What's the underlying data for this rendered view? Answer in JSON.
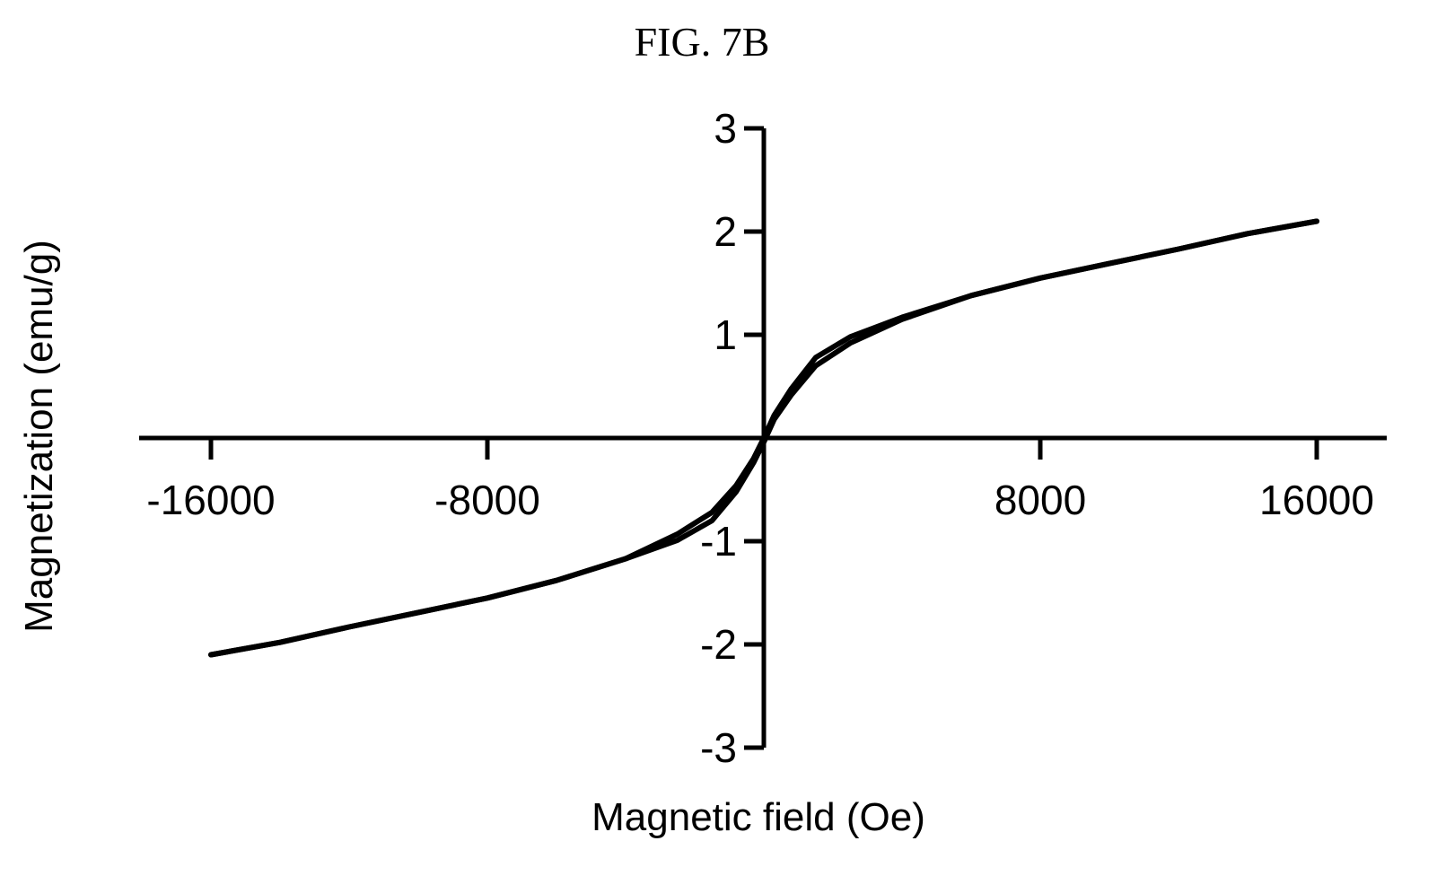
{
  "figure_label": "FIG. 7B",
  "chart_data": {
    "type": "line",
    "title": "",
    "xlabel": "Magnetic field (Oe)",
    "ylabel": "Magnetization (emu/g)",
    "xlim": [
      -18000,
      18000
    ],
    "ylim": [
      -3,
      3
    ],
    "x_ticks": [
      -16000,
      -8000,
      8000,
      16000
    ],
    "x_tick_labels": [
      "-16000",
      "-8000",
      "8000",
      "16000"
    ],
    "y_ticks": [
      3,
      2,
      1,
      -1,
      -2,
      -3
    ],
    "y_tick_labels": [
      "3",
      "2",
      "1",
      "-1",
      "-2",
      "-3"
    ],
    "axes_cross_at_origin": true,
    "grid": false,
    "legend": "none",
    "line_color": "#000000",
    "series": [
      {
        "values": [
          [
            -16000,
            -2.1
          ],
          [
            -14000,
            -1.98
          ],
          [
            -12000,
            -1.83
          ],
          [
            -10000,
            -1.69
          ],
          [
            -8000,
            -1.55
          ],
          [
            -6000,
            -1.38
          ],
          [
            -4000,
            -1.17
          ],
          [
            -2500,
            -0.93
          ],
          [
            -1500,
            -0.72
          ],
          [
            -800,
            -0.46
          ],
          [
            -300,
            -0.2
          ],
          [
            0,
            0.0
          ],
          [
            300,
            0.22
          ],
          [
            800,
            0.48
          ],
          [
            1500,
            0.78
          ],
          [
            2500,
            0.98
          ],
          [
            4000,
            1.17
          ],
          [
            6000,
            1.38
          ],
          [
            8000,
            1.55
          ],
          [
            10000,
            1.69
          ],
          [
            12000,
            1.83
          ],
          [
            14000,
            1.98
          ],
          [
            16000,
            2.1
          ]
        ]
      },
      {
        "values": [
          [
            -16000,
            -2.1
          ],
          [
            -14000,
            -1.98
          ],
          [
            -12000,
            -1.83
          ],
          [
            -10000,
            -1.69
          ],
          [
            -8000,
            -1.55
          ],
          [
            -6000,
            -1.38
          ],
          [
            -4000,
            -1.17
          ],
          [
            -2500,
            -0.99
          ],
          [
            -1500,
            -0.8
          ],
          [
            -800,
            -0.52
          ],
          [
            -300,
            -0.24
          ],
          [
            0,
            -0.04
          ],
          [
            300,
            0.18
          ],
          [
            800,
            0.42
          ],
          [
            1500,
            0.7
          ],
          [
            2500,
            0.92
          ],
          [
            4000,
            1.15
          ],
          [
            6000,
            1.38
          ],
          [
            8000,
            1.55
          ],
          [
            10000,
            1.69
          ],
          [
            12000,
            1.83
          ],
          [
            14000,
            1.98
          ],
          [
            16000,
            2.1
          ]
        ]
      }
    ]
  }
}
